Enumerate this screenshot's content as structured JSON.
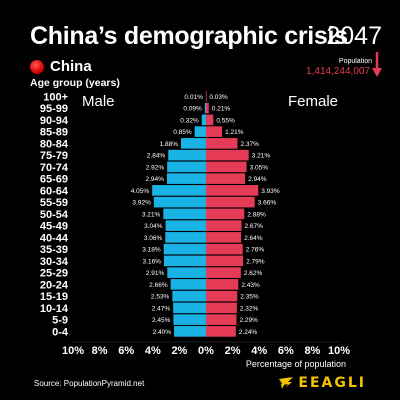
{
  "header": {
    "title": "China’s demographic crisis",
    "year": "2047",
    "country": "China",
    "age_group_label": "Age group (years)",
    "population_label": "Population",
    "population_value": "1,414,244,007"
  },
  "footer": {
    "source": "Source: PopulationPyramid.net",
    "brand": "EEAGLI"
  },
  "colors": {
    "male": "#19b3e6",
    "female": "#e63b57",
    "brand": "#f6c200"
  },
  "chart_data": {
    "type": "bar",
    "orientation": "horizontal-pyramid",
    "categories": [
      "100+",
      "95-99",
      "90-94",
      "85-89",
      "80-84",
      "75-79",
      "70-74",
      "65-69",
      "60-64",
      "55-59",
      "50-54",
      "45-49",
      "40-44",
      "35-39",
      "30-34",
      "25-29",
      "20-24",
      "15-19",
      "10-14",
      "5-9",
      "0-4"
    ],
    "series": [
      {
        "name": "Male",
        "values": [
          0.01,
          0.09,
          0.32,
          0.85,
          1.88,
          2.84,
          2.92,
          2.94,
          4.05,
          3.92,
          3.21,
          3.04,
          3.06,
          3.18,
          3.16,
          2.91,
          2.66,
          2.53,
          2.47,
          2.45,
          2.4
        ],
        "labels": [
          "0.01%",
          "0.09%",
          "0.32%",
          "0.85%",
          "1.88%",
          "2.84%",
          "2.92%",
          "2.94%",
          "4.05%",
          "3.92%",
          "3.21%",
          "3.04%",
          "3.06%",
          "3.18%",
          "3.16%",
          "2.91%",
          "2.66%",
          "2.53%",
          "2.47%",
          "2.45%",
          "2.40%"
        ]
      },
      {
        "name": "Female",
        "values": [
          0.03,
          0.21,
          0.55,
          1.21,
          2.37,
          3.21,
          3.05,
          2.94,
          3.93,
          3.66,
          2.88,
          2.67,
          2.64,
          2.76,
          2.79,
          2.62,
          2.43,
          2.35,
          2.32,
          2.29,
          2.24
        ],
        "labels": [
          "0.03%",
          "0.21%",
          "0.55%",
          "1.21%",
          "2.37%",
          "3.21%",
          "3.05%",
          "2.94%",
          "3.93%",
          "3.66%",
          "2.88%",
          "2.67%",
          "2.64%",
          "2.76%",
          "2.79%",
          "2.62%",
          "2.43%",
          "2.35%",
          "2.32%",
          "2.29%",
          "2.24%"
        ]
      }
    ],
    "xlabel": "Percentage of population",
    "ylabel": "Age group (years)",
    "xlim": [
      -10,
      10
    ],
    "xticks": [
      "10%",
      "8%",
      "6%",
      "4%",
      "2%",
      "0%",
      "2%",
      "4%",
      "6%",
      "8%",
      "10%"
    ],
    "grid": false,
    "legend": "in-chart labels (Male left, Female right)"
  }
}
